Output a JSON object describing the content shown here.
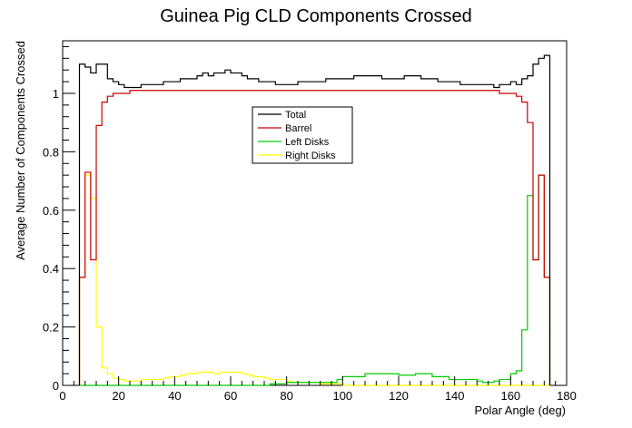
{
  "chart_data": {
    "type": "line",
    "title": "Guinea Pig CLD Components Crossed",
    "xlabel": "Polar Angle (deg)",
    "ylabel": "Average Number of Components Crossed",
    "xlim": [
      0,
      180
    ],
    "ylim": [
      0,
      1.18
    ],
    "x_ticks": [
      "0",
      "20",
      "40",
      "60",
      "80",
      "100",
      "120",
      "140",
      "160",
      "180"
    ],
    "y_ticks": [
      "0",
      "0.2",
      "0.4",
      "0.6",
      "0.8",
      "1"
    ],
    "legend_position": "upper-center",
    "grid": false,
    "bin_edges": [
      6,
      8,
      10,
      12,
      14,
      16,
      18,
      20,
      22,
      24,
      26,
      28,
      30,
      32,
      34,
      36,
      38,
      40,
      42,
      44,
      46,
      48,
      50,
      52,
      54,
      56,
      58,
      60,
      62,
      64,
      66,
      68,
      70,
      72,
      74,
      76,
      78,
      80,
      82,
      84,
      86,
      88,
      90,
      92,
      94,
      96,
      98,
      100,
      102,
      104,
      106,
      108,
      110,
      112,
      114,
      116,
      118,
      120,
      122,
      124,
      126,
      128,
      130,
      132,
      134,
      136,
      138,
      140,
      142,
      144,
      146,
      148,
      150,
      152,
      154,
      156,
      158,
      160,
      162,
      164,
      166,
      168,
      170,
      172,
      174
    ],
    "series": [
      {
        "name": "Total",
        "color": "#000000",
        "values": [
          1.1,
          1.09,
          1.07,
          1.1,
          1.1,
          1.05,
          1.04,
          1.03,
          1.02,
          1.02,
          1.02,
          1.03,
          1.03,
          1.03,
          1.03,
          1.04,
          1.04,
          1.04,
          1.05,
          1.05,
          1.05,
          1.06,
          1.07,
          1.06,
          1.07,
          1.07,
          1.08,
          1.07,
          1.07,
          1.06,
          1.05,
          1.05,
          1.04,
          1.04,
          1.04,
          1.03,
          1.03,
          1.03,
          1.03,
          1.04,
          1.04,
          1.04,
          1.04,
          1.04,
          1.05,
          1.05,
          1.05,
          1.05,
          1.05,
          1.06,
          1.06,
          1.06,
          1.06,
          1.06,
          1.05,
          1.05,
          1.05,
          1.05,
          1.06,
          1.06,
          1.06,
          1.05,
          1.05,
          1.05,
          1.04,
          1.04,
          1.04,
          1.04,
          1.03,
          1.03,
          1.03,
          1.03,
          1.03,
          1.03,
          1.02,
          1.03,
          1.03,
          1.04,
          1.03,
          1.05,
          1.06,
          1.1,
          1.12,
          1.13
        ]
      },
      {
        "name": "Barrel",
        "color": "#cc0000",
        "values": [
          0.37,
          0.73,
          0.43,
          0.89,
          0.97,
          0.99,
          1.0,
          1.0,
          1.0,
          1.01,
          1.01,
          1.01,
          1.01,
          1.01,
          1.01,
          1.01,
          1.01,
          1.01,
          1.01,
          1.01,
          1.01,
          1.01,
          1.01,
          1.01,
          1.01,
          1.01,
          1.01,
          1.01,
          1.01,
          1.01,
          1.01,
          1.01,
          1.01,
          1.01,
          1.01,
          1.01,
          1.01,
          1.01,
          1.01,
          1.01,
          1.01,
          1.01,
          1.01,
          1.01,
          1.01,
          1.01,
          1.01,
          1.01,
          1.01,
          1.01,
          1.01,
          1.01,
          1.01,
          1.01,
          1.01,
          1.01,
          1.01,
          1.01,
          1.01,
          1.01,
          1.01,
          1.01,
          1.01,
          1.01,
          1.01,
          1.01,
          1.01,
          1.01,
          1.01,
          1.01,
          1.01,
          1.01,
          1.01,
          1.01,
          1.01,
          1.0,
          1.0,
          1.0,
          0.99,
          0.97,
          0.9,
          0.43,
          0.72,
          0.37
        ]
      },
      {
        "name": "Left Disks",
        "color": "#00cc00",
        "values": [
          0,
          0,
          0,
          0,
          0,
          0,
          0,
          0,
          0,
          0,
          0,
          0,
          0,
          0,
          0,
          0,
          0,
          0,
          0,
          0,
          0,
          0,
          0,
          0,
          0,
          0,
          0,
          0,
          0,
          0,
          0,
          0,
          0,
          0,
          0.005,
          0.005,
          0.005,
          0.01,
          0.01,
          0.01,
          0.01,
          0.01,
          0.01,
          0.01,
          0.01,
          0.01,
          0.02,
          0.03,
          0.03,
          0.03,
          0.03,
          0.04,
          0.04,
          0.04,
          0.04,
          0.04,
          0.04,
          0.035,
          0.035,
          0.035,
          0.04,
          0.04,
          0.04,
          0.03,
          0.03,
          0.03,
          0.02,
          0.02,
          0.02,
          0.02,
          0.02,
          0.015,
          0.01,
          0.01,
          0.015,
          0.02,
          0.02,
          0.04,
          0.05,
          0.19,
          0.65,
          0.43,
          0.72,
          0.37
        ]
      },
      {
        "name": "Right Disks",
        "color": "#ffff00",
        "values": [
          0.37,
          0.72,
          0.64,
          0.2,
          0.06,
          0.04,
          0.025,
          0.02,
          0.015,
          0.015,
          0.015,
          0.02,
          0.02,
          0.02,
          0.02,
          0.025,
          0.03,
          0.03,
          0.035,
          0.04,
          0.04,
          0.045,
          0.045,
          0.045,
          0.04,
          0.045,
          0.045,
          0.045,
          0.045,
          0.04,
          0.035,
          0.03,
          0.03,
          0.025,
          0.02,
          0.02,
          0.02,
          0.015,
          0.01,
          0.01,
          0.01,
          0.01,
          0.01,
          0.005,
          0.005,
          0.005,
          0.005,
          0,
          0,
          0,
          0,
          0,
          0,
          0,
          0,
          0,
          0,
          0,
          0,
          0,
          0,
          0,
          0,
          0,
          0,
          0,
          0,
          0,
          0,
          0,
          0,
          0,
          0,
          0,
          0,
          0,
          0,
          0,
          0,
          0,
          0,
          0,
          0,
          0
        ]
      }
    ]
  }
}
